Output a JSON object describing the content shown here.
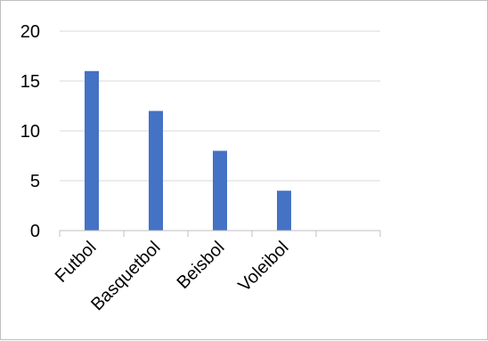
{
  "chart_data": {
    "type": "bar",
    "categories": [
      "Futbol",
      "Basquetbol",
      "Beisbol",
      "Voleibol",
      ""
    ],
    "values": [
      16,
      12,
      8,
      4,
      null
    ],
    "title": "",
    "xlabel": "",
    "ylabel": "",
    "ylim": [
      0,
      20
    ],
    "yticks": [
      0,
      5,
      10,
      15,
      20
    ],
    "ytick_labels": [
      "0",
      "5",
      "10",
      "15",
      "20"
    ],
    "grid": true,
    "legend": "none",
    "colors": {
      "bar": "#4472C4",
      "grid": "#d9d9d9",
      "axis": "#bfbfbf",
      "frame": "#bfbfbf",
      "text": "#000000"
    }
  }
}
